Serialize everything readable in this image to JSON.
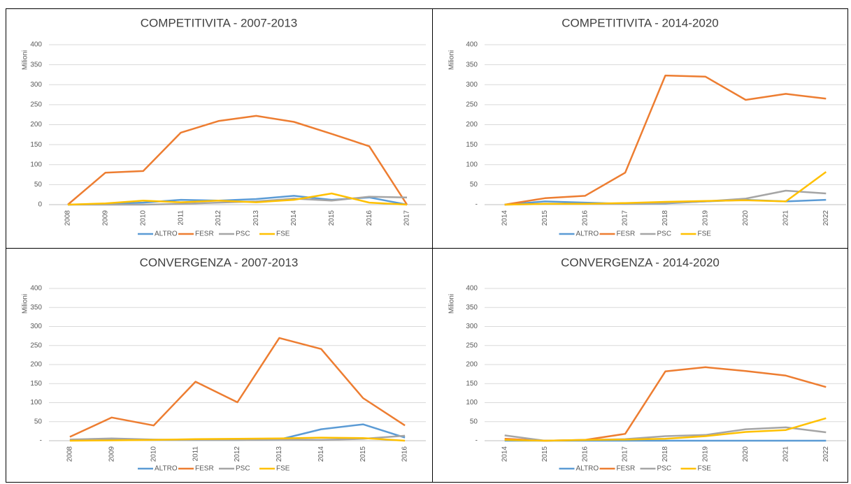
{
  "chart_data": [
    {
      "type": "line",
      "title": "COMPETITIVITA - 2007-2013",
      "y_label": "Milioni",
      "categories": [
        "2008",
        "2009",
        "2010",
        "2011",
        "2012",
        "2013",
        "2014",
        "2015",
        "2016",
        "2017"
      ],
      "ylim": [
        0,
        400
      ],
      "yticks": [
        0,
        50,
        100,
        150,
        200,
        250,
        300,
        350,
        400
      ],
      "grid": true,
      "legend": "bottom",
      "series": [
        {
          "name": "ALTRO",
          "color": "#5b9bd5",
          "values": [
            0,
            2,
            5,
            12,
            10,
            14,
            22,
            12,
            18,
            0
          ]
        },
        {
          "name": "FESR",
          "color": "#ed7d31",
          "values": [
            0,
            80,
            84,
            180,
            209,
            222,
            207,
            177,
            146,
            0
          ]
        },
        {
          "name": "PSC",
          "color": "#a5a5a5",
          "values": [
            0,
            0,
            0,
            2,
            5,
            8,
            15,
            10,
            20,
            18
          ]
        },
        {
          "name": "FSE",
          "color": "#ffc000",
          "values": [
            0,
            3,
            10,
            6,
            10,
            6,
            12,
            28,
            5,
            0
          ]
        }
      ]
    },
    {
      "type": "line",
      "title": "COMPETITIVITA - 2014-2020",
      "y_label": "Milioni",
      "categories": [
        "2014",
        "2015",
        "2016",
        "2017",
        "2018",
        "2019",
        "2020",
        "2021",
        "2022"
      ],
      "ylim": [
        0,
        400
      ],
      "yticks": [
        {
          "value": 0,
          "label": "-"
        },
        50,
        100,
        150,
        200,
        250,
        300,
        350,
        400
      ],
      "grid": true,
      "legend": "bottom",
      "series": [
        {
          "name": "ALTRO",
          "color": "#5b9bd5",
          "values": [
            0,
            8,
            5,
            2,
            3,
            8,
            12,
            8,
            12
          ]
        },
        {
          "name": "FESR",
          "color": "#ed7d31",
          "values": [
            0,
            16,
            22,
            80,
            323,
            320,
            262,
            277,
            265
          ]
        },
        {
          "name": "PSC",
          "color": "#a5a5a5",
          "values": [
            0,
            2,
            2,
            2,
            4,
            8,
            15,
            35,
            28
          ]
        },
        {
          "name": "FSE",
          "color": "#ffc000",
          "values": [
            0,
            2,
            2,
            4,
            7,
            9,
            11,
            8,
            82
          ]
        }
      ]
    },
    {
      "type": "line",
      "title": "CONVERGENZA - 2007-2013",
      "y_label": "Milioni",
      "categories": [
        "2008",
        "2009",
        "2010",
        "2011",
        "2012",
        "2013",
        "2014",
        "2015",
        "2016"
      ],
      "ylim": [
        0,
        400
      ],
      "yticks": [
        {
          "value": 0,
          "label": "-"
        },
        50,
        100,
        150,
        200,
        250,
        300,
        350,
        400
      ],
      "grid": true,
      "legend": "bottom",
      "series": [
        {
          "name": "ALTRO",
          "color": "#5b9bd5",
          "values": [
            2,
            3,
            2,
            2,
            2,
            3,
            30,
            43,
            8
          ]
        },
        {
          "name": "FESR",
          "color": "#ed7d31",
          "values": [
            10,
            61,
            40,
            155,
            101,
            270,
            241,
            112,
            40
          ]
        },
        {
          "name": "PSC",
          "color": "#a5a5a5",
          "values": [
            3,
            6,
            3,
            2,
            2,
            3,
            2,
            5,
            13
          ]
        },
        {
          "name": "FSE",
          "color": "#ffc000",
          "values": [
            0,
            1,
            2,
            4,
            5,
            6,
            8,
            7,
            0
          ]
        }
      ]
    },
    {
      "type": "line",
      "title": "CONVERGENZA - 2014-2020",
      "y_label": "Milioni",
      "categories": [
        "2014",
        "2015",
        "2016",
        "2017",
        "2018",
        "2019",
        "2020",
        "2021",
        "2022"
      ],
      "ylim": [
        0,
        400
      ],
      "yticks": [
        {
          "value": 0,
          "label": "-"
        },
        50,
        100,
        150,
        200,
        250,
        300,
        350,
        400
      ],
      "grid": true,
      "legend": "bottom",
      "series": [
        {
          "name": "ALTRO",
          "color": "#5b9bd5",
          "values": [
            0,
            0,
            0,
            0,
            0,
            0,
            0,
            0,
            0
          ]
        },
        {
          "name": "FESR",
          "color": "#ed7d31",
          "values": [
            5,
            0,
            2,
            18,
            182,
            193,
            183,
            171,
            141
          ]
        },
        {
          "name": "PSC",
          "color": "#a5a5a5",
          "values": [
            14,
            0,
            2,
            4,
            12,
            15,
            30,
            35,
            22
          ]
        },
        {
          "name": "FSE",
          "color": "#ffc000",
          "values": [
            2,
            0,
            2,
            3,
            5,
            12,
            23,
            28,
            59
          ]
        }
      ]
    }
  ]
}
